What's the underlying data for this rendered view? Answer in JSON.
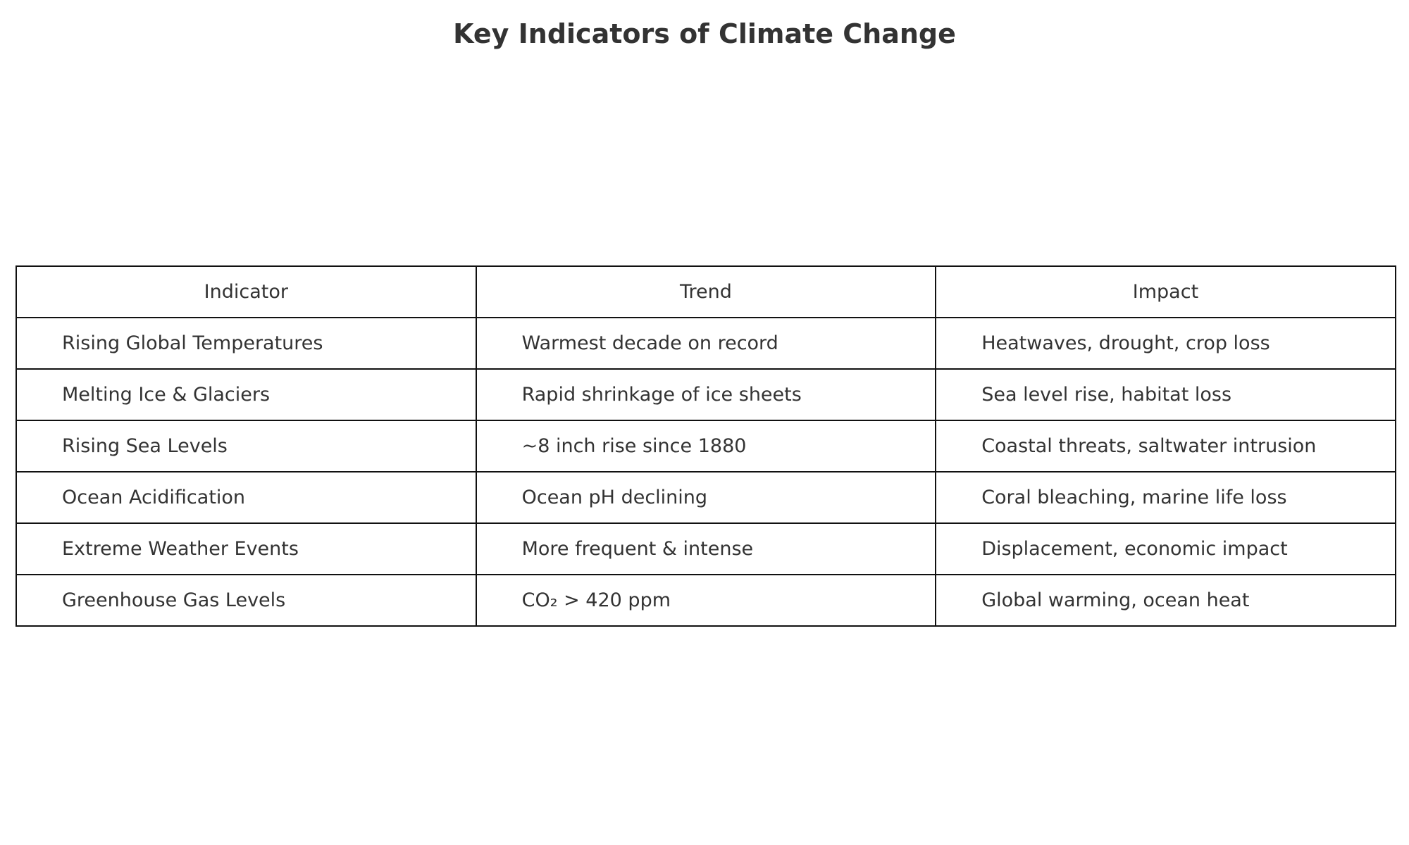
{
  "chart_data": {
    "type": "table",
    "title": "Key Indicators of Climate Change",
    "columns": [
      "Indicator",
      "Trend",
      "Impact"
    ],
    "rows": [
      [
        "Rising Global Temperatures",
        "Warmest decade on record",
        "Heatwaves, drought, crop loss"
      ],
      [
        "Melting Ice & Glaciers",
        "Rapid shrinkage of ice sheets",
        "Sea level rise, habitat loss"
      ],
      [
        "Rising Sea Levels",
        "~8 inch rise since 1880",
        "Coastal threats, saltwater intrusion"
      ],
      [
        "Ocean Acidification",
        "Ocean pH declining",
        "Coral bleaching, marine life loss"
      ],
      [
        "Extreme Weather Events",
        "More frequent & intense",
        "Displacement, economic impact"
      ],
      [
        "Greenhouse Gas Levels",
        "CO₂ > 420 ppm",
        "Global warming, ocean heat"
      ]
    ]
  },
  "colors": {
    "text": "#333333",
    "border": "#111111",
    "background": "#ffffff"
  }
}
